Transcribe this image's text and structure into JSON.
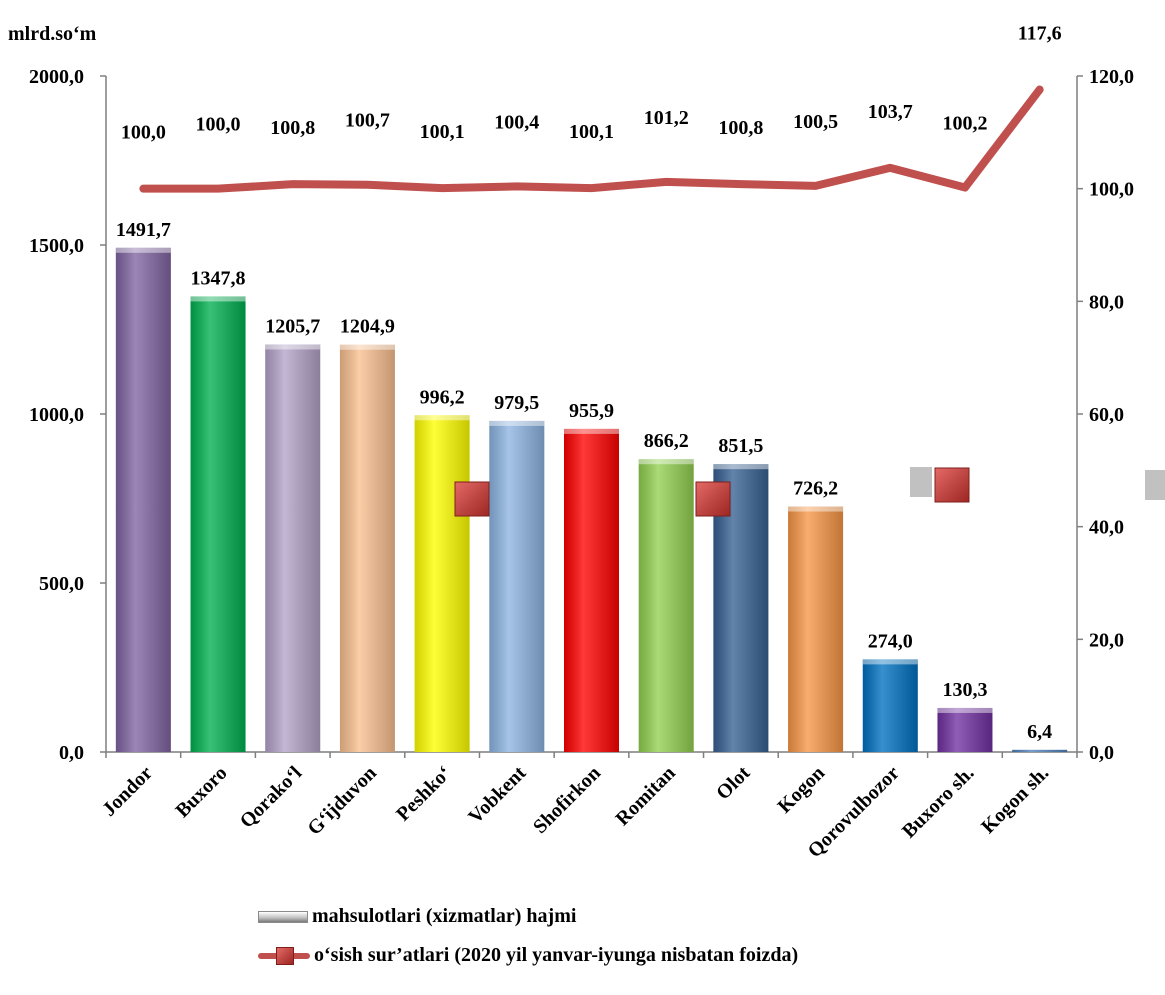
{
  "chart_data": {
    "type": "bar",
    "unit_label": "mlrd.so‘m",
    "categories": [
      "Jondor",
      "Buxoro",
      "Qorako‘l",
      "G‘ijduvon",
      "Peshko‘",
      "Vobkent",
      "Shofirkon",
      "Romitan",
      "Olot",
      "Kogon",
      "Qorovulbozor",
      "Buxoro sh.",
      "Kogon sh."
    ],
    "series": [
      {
        "name": "mahsulotlari (xizmatlar) hajmi",
        "type": "bar",
        "axis": "left",
        "values": [
          1491.7,
          1347.8,
          1205.7,
          1204.9,
          996.2,
          979.5,
          955.9,
          866.2,
          851.5,
          726.2,
          274.0,
          130.3,
          6.4
        ],
        "labels": [
          "1491,7",
          "1347,8",
          "1205,7",
          "1204,9",
          "996,2",
          "979,5",
          "955,9",
          "866,2",
          "851,5",
          "726,2",
          "274,0",
          "130,3",
          "6,4"
        ],
        "colors": [
          "#8064a2",
          "#00b050",
          "#b3a2c7",
          "#fac090",
          "#ffff00",
          "#8db4e2",
          "#ff0000",
          "#92d050",
          "#366092",
          "#f79646",
          "#0070c0",
          "#7030a0",
          "#4f81bd"
        ]
      },
      {
        "name": "o‘sish sur’atlari (2020 yil yanvar-iyunga  nisbatan foizda)",
        "type": "line",
        "axis": "right",
        "color": "#c0504d",
        "values": [
          100.0,
          100.0,
          100.8,
          100.7,
          100.1,
          100.4,
          100.1,
          101.2,
          100.8,
          100.5,
          103.7,
          100.2,
          117.6
        ],
        "labels": [
          "100,0",
          "100,0",
          "100,8",
          "100,7",
          "100,1",
          "100,4",
          "100,1",
          "101,2",
          "100,8",
          "100,5",
          "103,7",
          "100,2",
          "117,6"
        ]
      }
    ],
    "ylim_left": [
      0,
      2000
    ],
    "yticks_left": [
      "0,0",
      "500,0",
      "1000,0",
      "1500,0",
      "2000,0"
    ],
    "ylim_right": [
      0,
      120
    ],
    "yticks_right": [
      "0,0",
      "20,0",
      "40,0",
      "60,0",
      "80,0",
      "100,0",
      "120,0"
    ],
    "legend_position": "bottom",
    "grid": false
  }
}
